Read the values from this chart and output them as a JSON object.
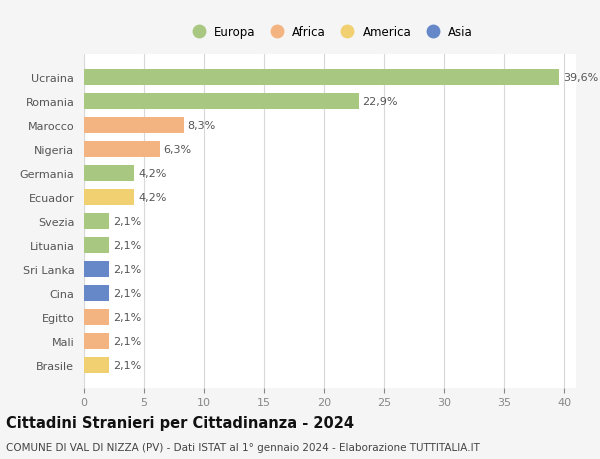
{
  "countries": [
    "Ucraina",
    "Romania",
    "Marocco",
    "Nigeria",
    "Germania",
    "Ecuador",
    "Svezia",
    "Lituania",
    "Sri Lanka",
    "Cina",
    "Egitto",
    "Mali",
    "Brasile"
  ],
  "values": [
    39.6,
    22.9,
    8.3,
    6.3,
    4.2,
    4.2,
    2.1,
    2.1,
    2.1,
    2.1,
    2.1,
    2.1,
    2.1
  ],
  "labels": [
    "39,6%",
    "22,9%",
    "8,3%",
    "6,3%",
    "4,2%",
    "4,2%",
    "2,1%",
    "2,1%",
    "2,1%",
    "2,1%",
    "2,1%",
    "2,1%",
    "2,1%"
  ],
  "colors": [
    "#a8c882",
    "#a8c882",
    "#f4b482",
    "#f4b482",
    "#a8c882",
    "#f0d070",
    "#a8c882",
    "#a8c882",
    "#6688c8",
    "#6688c8",
    "#f4b482",
    "#f4b482",
    "#f0d070"
  ],
  "legend_labels": [
    "Europa",
    "Africa",
    "America",
    "Asia"
  ],
  "legend_colors": [
    "#a8c882",
    "#f4b482",
    "#f0d070",
    "#6688c8"
  ],
  "xlim": [
    0,
    41
  ],
  "xticks": [
    0,
    5,
    10,
    15,
    20,
    25,
    30,
    35,
    40
  ],
  "title": "Cittadini Stranieri per Cittadinanza - 2024",
  "subtitle": "COMUNE DI VAL DI NIZZA (PV) - Dati ISTAT al 1° gennaio 2024 - Elaborazione TUTTITALIA.IT",
  "bg_color": "#f5f5f5",
  "bar_bg_color": "#ffffff",
  "grid_color": "#d8d8d8",
  "label_fontsize": 8,
  "tick_fontsize": 8,
  "title_fontsize": 10.5,
  "subtitle_fontsize": 7.5
}
